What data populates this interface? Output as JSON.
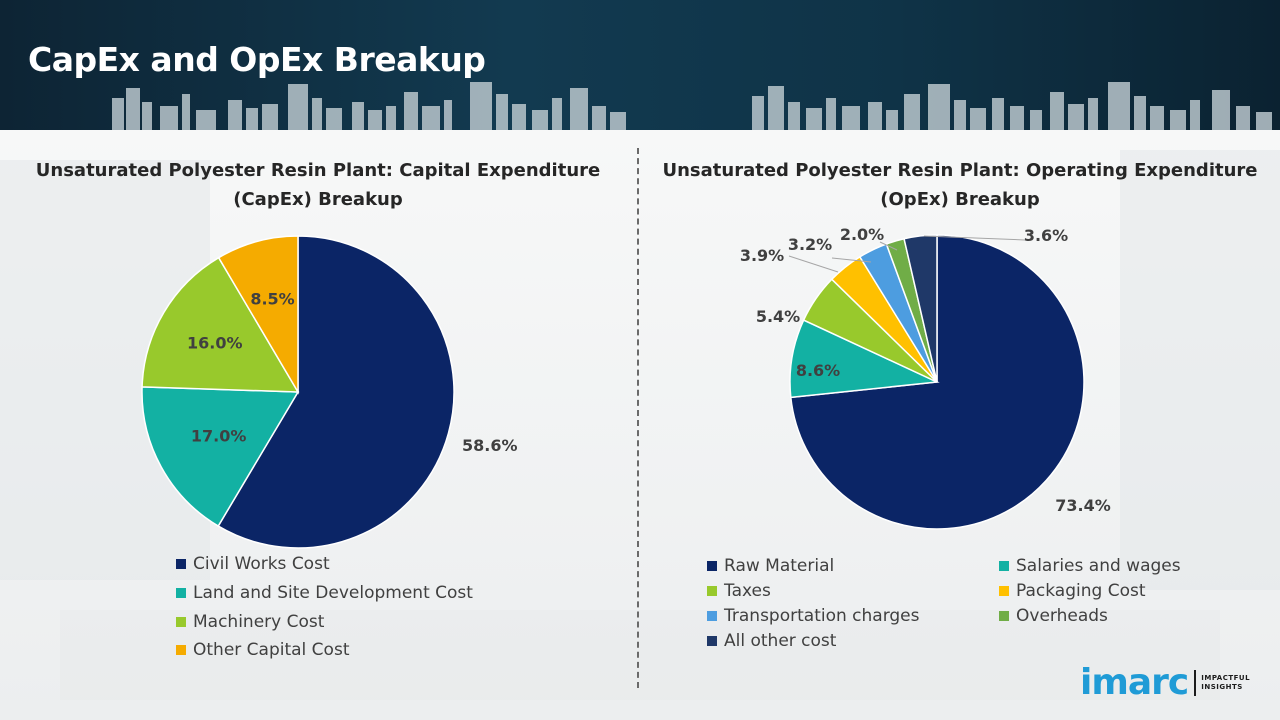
{
  "header": {
    "title": "CapEx and OpEx Breakup"
  },
  "chart_data": [
    {
      "type": "pie",
      "title": "Unsaturated Polyester Resin Plant: Capital Expenditure (CapEx) Breakup",
      "categories": [
        "Civil Works Cost",
        "Land and Site Development Cost",
        "Machinery Cost",
        "Other Capital Cost"
      ],
      "values": [
        58.6,
        17.0,
        16.0,
        8.5
      ],
      "labels": [
        "58.6%",
        "17.0%",
        "16.0%",
        "8.5%"
      ],
      "colors": [
        "#0b2566",
        "#13b1a3",
        "#98c92c",
        "#f5ab00"
      ],
      "start_angle_deg": 0,
      "direction": "clockwise",
      "legend": "bottom"
    },
    {
      "type": "pie",
      "title": "Unsaturated Polyester Resin Plant: Operating Expenditure (OpEx) Breakup",
      "categories": [
        "Raw Material",
        "Salaries and wages",
        "Taxes",
        "Packaging Cost",
        "Transportation charges",
        "Overheads",
        "All other cost"
      ],
      "values": [
        73.4,
        8.6,
        5.4,
        3.9,
        3.2,
        2.0,
        3.6
      ],
      "labels": [
        "73.4%",
        "8.6%",
        "5.4%",
        "3.9%",
        "3.2%",
        "2.0%",
        "3.6%"
      ],
      "colors": [
        "#0b2566",
        "#13b1a3",
        "#98c92c",
        "#ffc000",
        "#4d9de0",
        "#70ad47",
        "#1f3868"
      ],
      "start_angle_deg": 0,
      "direction": "clockwise",
      "legend": "bottom, two columns"
    }
  ],
  "logo": {
    "name": "imarc",
    "tagline_line1": "IMPACTFUL",
    "tagline_line2": "INSIGHTS",
    "color": "#1f9bd6"
  }
}
